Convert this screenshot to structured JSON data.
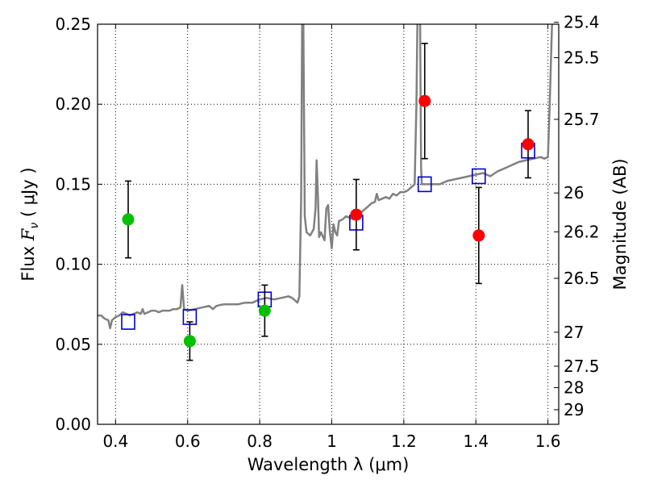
{
  "chart_data": {
    "type": "scatter",
    "xlabel": "Wavelength  λ (μm)",
    "ylabel": "Flux  F_ν  ( μJy )",
    "ylabel_parts": {
      "prefix": "Flux  ",
      "symbol": "F",
      "subscript": "ν",
      "suffix": "  ( μJy )"
    },
    "y2label": "Magnitude (AB)",
    "xlim": [
      0.35,
      1.63
    ],
    "ylim": [
      0.0,
      0.25
    ],
    "grid": true,
    "xticks": [
      0.4,
      0.6,
      0.8,
      1.0,
      1.2,
      1.4,
      1.6
    ],
    "xtick_labels": [
      "0.4",
      "0.6",
      "0.8",
      "1",
      "1.2",
      "1.4",
      "1.6"
    ],
    "yticks": [
      0.0,
      0.05,
      0.1,
      0.15,
      0.2,
      0.25
    ],
    "ytick_labels": [
      "0.00",
      "0.05",
      "0.10",
      "0.15",
      "0.20",
      "0.25"
    ],
    "mag_ticks": [
      {
        "label": "25.4",
        "mag": 25.4
      },
      {
        "label": "25.5",
        "mag": 25.5
      },
      {
        "label": "25.7",
        "mag": 25.7
      },
      {
        "label": "26",
        "mag": 26.0
      },
      {
        "label": "26.2",
        "mag": 26.2
      },
      {
        "label": "26.5",
        "mag": 26.5
      },
      {
        "label": "27",
        "mag": 27.0
      },
      {
        "label": "27.5",
        "mag": 27.5
      },
      {
        "label": "28",
        "mag": 28.0
      },
      {
        "label": "29",
        "mag": 29.0
      }
    ],
    "series": [
      {
        "name": "green photometry",
        "color": "#00c000",
        "marker": "circle",
        "points": [
          {
            "x": 0.435,
            "y": 0.128,
            "err": 0.024
          },
          {
            "x": 0.606,
            "y": 0.052,
            "err": 0.012
          },
          {
            "x": 0.814,
            "y": 0.071,
            "err": 0.016
          }
        ]
      },
      {
        "name": "red photometry",
        "color": "#ff0000",
        "marker": "circle",
        "points": [
          {
            "x": 1.068,
            "y": 0.131,
            "err": 0.022
          },
          {
            "x": 1.258,
            "y": 0.202,
            "err": 0.036
          },
          {
            "x": 1.408,
            "y": 0.118,
            "err": 0.03
          },
          {
            "x": 1.545,
            "y": 0.175,
            "err": 0.021
          }
        ]
      },
      {
        "name": "model band fluxes",
        "color": "#0000cc",
        "marker": "open-square",
        "points": [
          {
            "x": 0.435,
            "y": 0.064
          },
          {
            "x": 0.606,
            "y": 0.067
          },
          {
            "x": 0.814,
            "y": 0.078
          },
          {
            "x": 1.068,
            "y": 0.126
          },
          {
            "x": 1.258,
            "y": 0.15
          },
          {
            "x": 1.408,
            "y": 0.155
          },
          {
            "x": 1.545,
            "y": 0.171
          }
        ]
      }
    ],
    "model_spectrum": {
      "name": "model SED",
      "color": "#808080",
      "points": [
        [
          0.35,
          0.068
        ],
        [
          0.36,
          0.068
        ],
        [
          0.37,
          0.066
        ],
        [
          0.38,
          0.065
        ],
        [
          0.385,
          0.06
        ],
        [
          0.39,
          0.065
        ],
        [
          0.4,
          0.067
        ],
        [
          0.41,
          0.068
        ],
        [
          0.42,
          0.07
        ],
        [
          0.43,
          0.069
        ],
        [
          0.44,
          0.068
        ],
        [
          0.45,
          0.069
        ],
        [
          0.46,
          0.07
        ],
        [
          0.47,
          0.069
        ],
        [
          0.475,
          0.072
        ],
        [
          0.48,
          0.069
        ],
        [
          0.49,
          0.07
        ],
        [
          0.5,
          0.071
        ],
        [
          0.51,
          0.071
        ],
        [
          0.52,
          0.07
        ],
        [
          0.53,
          0.071
        ],
        [
          0.54,
          0.071
        ],
        [
          0.55,
          0.071
        ],
        [
          0.56,
          0.072
        ],
        [
          0.57,
          0.072
        ],
        [
          0.58,
          0.073
        ],
        [
          0.585,
          0.087
        ],
        [
          0.59,
          0.072
        ],
        [
          0.6,
          0.071
        ],
        [
          0.62,
          0.072
        ],
        [
          0.64,
          0.073
        ],
        [
          0.66,
          0.074
        ],
        [
          0.67,
          0.072
        ],
        [
          0.68,
          0.074
        ],
        [
          0.7,
          0.075
        ],
        [
          0.72,
          0.075
        ],
        [
          0.74,
          0.075
        ],
        [
          0.76,
          0.076
        ],
        [
          0.78,
          0.076
        ],
        [
          0.8,
          0.078
        ],
        [
          0.82,
          0.079
        ],
        [
          0.84,
          0.078
        ],
        [
          0.86,
          0.079
        ],
        [
          0.88,
          0.08
        ],
        [
          0.89,
          0.079
        ],
        [
          0.9,
          0.077
        ],
        [
          0.905,
          0.076
        ],
        [
          0.91,
          0.08
        ],
        [
          0.915,
          0.14
        ],
        [
          0.918,
          0.255
        ],
        [
          0.921,
          0.255
        ],
        [
          0.925,
          0.13
        ],
        [
          0.93,
          0.12
        ],
        [
          0.94,
          0.118
        ],
        [
          0.95,
          0.122
        ],
        [
          0.955,
          0.135
        ],
        [
          0.958,
          0.165
        ],
        [
          0.962,
          0.14
        ],
        [
          0.965,
          0.117
        ],
        [
          0.97,
          0.12
        ],
        [
          0.98,
          0.115
        ],
        [
          0.985,
          0.135
        ],
        [
          0.99,
          0.137
        ],
        [
          0.995,
          0.12
        ],
        [
          1.0,
          0.11
        ],
        [
          1.005,
          0.125
        ],
        [
          1.01,
          0.12
        ],
        [
          1.015,
          0.118
        ],
        [
          1.02,
          0.127
        ],
        [
          1.03,
          0.128
        ],
        [
          1.04,
          0.13
        ],
        [
          1.05,
          0.129
        ],
        [
          1.06,
          0.128
        ],
        [
          1.07,
          0.13
        ],
        [
          1.08,
          0.132
        ],
        [
          1.09,
          0.134
        ],
        [
          1.1,
          0.136
        ],
        [
          1.11,
          0.138
        ],
        [
          1.12,
          0.139
        ],
        [
          1.125,
          0.144
        ],
        [
          1.13,
          0.14
        ],
        [
          1.14,
          0.141
        ],
        [
          1.15,
          0.142
        ],
        [
          1.16,
          0.141
        ],
        [
          1.17,
          0.144
        ],
        [
          1.18,
          0.143
        ],
        [
          1.19,
          0.145
        ],
        [
          1.2,
          0.145
        ],
        [
          1.21,
          0.146
        ],
        [
          1.22,
          0.148
        ],
        [
          1.23,
          0.15
        ],
        [
          1.235,
          0.2
        ],
        [
          1.238,
          0.255
        ],
        [
          1.245,
          0.255
        ],
        [
          1.248,
          0.16
        ],
        [
          1.25,
          0.15
        ],
        [
          1.26,
          0.15
        ],
        [
          1.28,
          0.15
        ],
        [
          1.3,
          0.15
        ],
        [
          1.32,
          0.152
        ],
        [
          1.34,
          0.153
        ],
        [
          1.36,
          0.154
        ],
        [
          1.38,
          0.155
        ],
        [
          1.4,
          0.156
        ],
        [
          1.42,
          0.157
        ],
        [
          1.44,
          0.155
        ],
        [
          1.46,
          0.158
        ],
        [
          1.48,
          0.16
        ],
        [
          1.5,
          0.162
        ],
        [
          1.52,
          0.164
        ],
        [
          1.54,
          0.165
        ],
        [
          1.56,
          0.166
        ],
        [
          1.58,
          0.167
        ],
        [
          1.59,
          0.166
        ],
        [
          1.6,
          0.167
        ],
        [
          1.605,
          0.2
        ],
        [
          1.61,
          0.24
        ],
        [
          1.612,
          0.255
        ]
      ]
    }
  }
}
